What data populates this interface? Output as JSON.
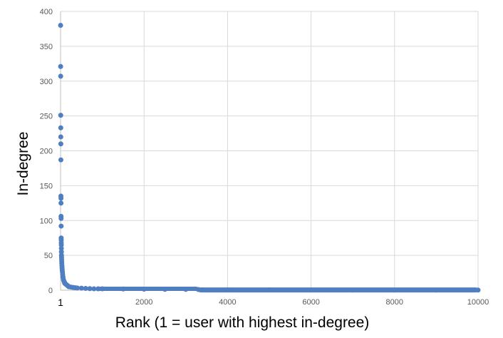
{
  "chart_data": {
    "type": "scatter",
    "title": "",
    "xlabel": "Rank (1 = user with highest in-degree)",
    "ylabel": "In-degree",
    "xlim": [
      0,
      10000
    ],
    "ylim": [
      0,
      400
    ],
    "x_ticks": [
      2000,
      4000,
      6000,
      8000,
      10000
    ],
    "x_tick_labels": [
      "2000",
      "4000",
      "6000",
      "8000",
      "10000"
    ],
    "x_origin_label": "1",
    "y_ticks": [
      0,
      50,
      100,
      150,
      200,
      250,
      300,
      350,
      400
    ],
    "y_tick_labels": [
      "0",
      "50",
      "100",
      "150",
      "200",
      "250",
      "300",
      "350",
      "400"
    ],
    "grid": true,
    "legend": "none",
    "marker_color": "#4f7fc0",
    "series": [
      {
        "x": [
          1,
          2,
          3,
          4,
          5,
          6,
          7,
          8,
          9,
          10,
          11,
          12,
          13,
          14,
          15,
          16,
          17,
          18,
          19,
          20,
          22,
          24,
          26,
          28,
          30,
          33,
          36,
          40,
          45,
          50,
          55,
          60,
          70,
          80,
          90,
          100,
          120,
          140,
          160,
          180,
          200,
          250,
          300,
          350,
          400,
          500,
          600,
          700,
          800,
          900,
          1000,
          1500,
          2000,
          2500,
          3000,
          3300,
          3400,
          4000,
          5000,
          6000,
          7000,
          8000,
          9000,
          10000
        ],
        "y": [
          380,
          321,
          307,
          251,
          233,
          220,
          210,
          187,
          135,
          132,
          125,
          106,
          103,
          92,
          75,
          72,
          68,
          65,
          60,
          55,
          50,
          47,
          44,
          41,
          38,
          35,
          32,
          29,
          26,
          23,
          20,
          18,
          15,
          13,
          12,
          10,
          9,
          8,
          7,
          6,
          5,
          4.5,
          4,
          3.6,
          3.2,
          3,
          2.6,
          2.3,
          2,
          2,
          2,
          1.8,
          1.5,
          1.3,
          1.2,
          1,
          0.5,
          0.5,
          0.4,
          0.3,
          0.3,
          0.2,
          0.2,
          0.2
        ]
      }
    ]
  }
}
